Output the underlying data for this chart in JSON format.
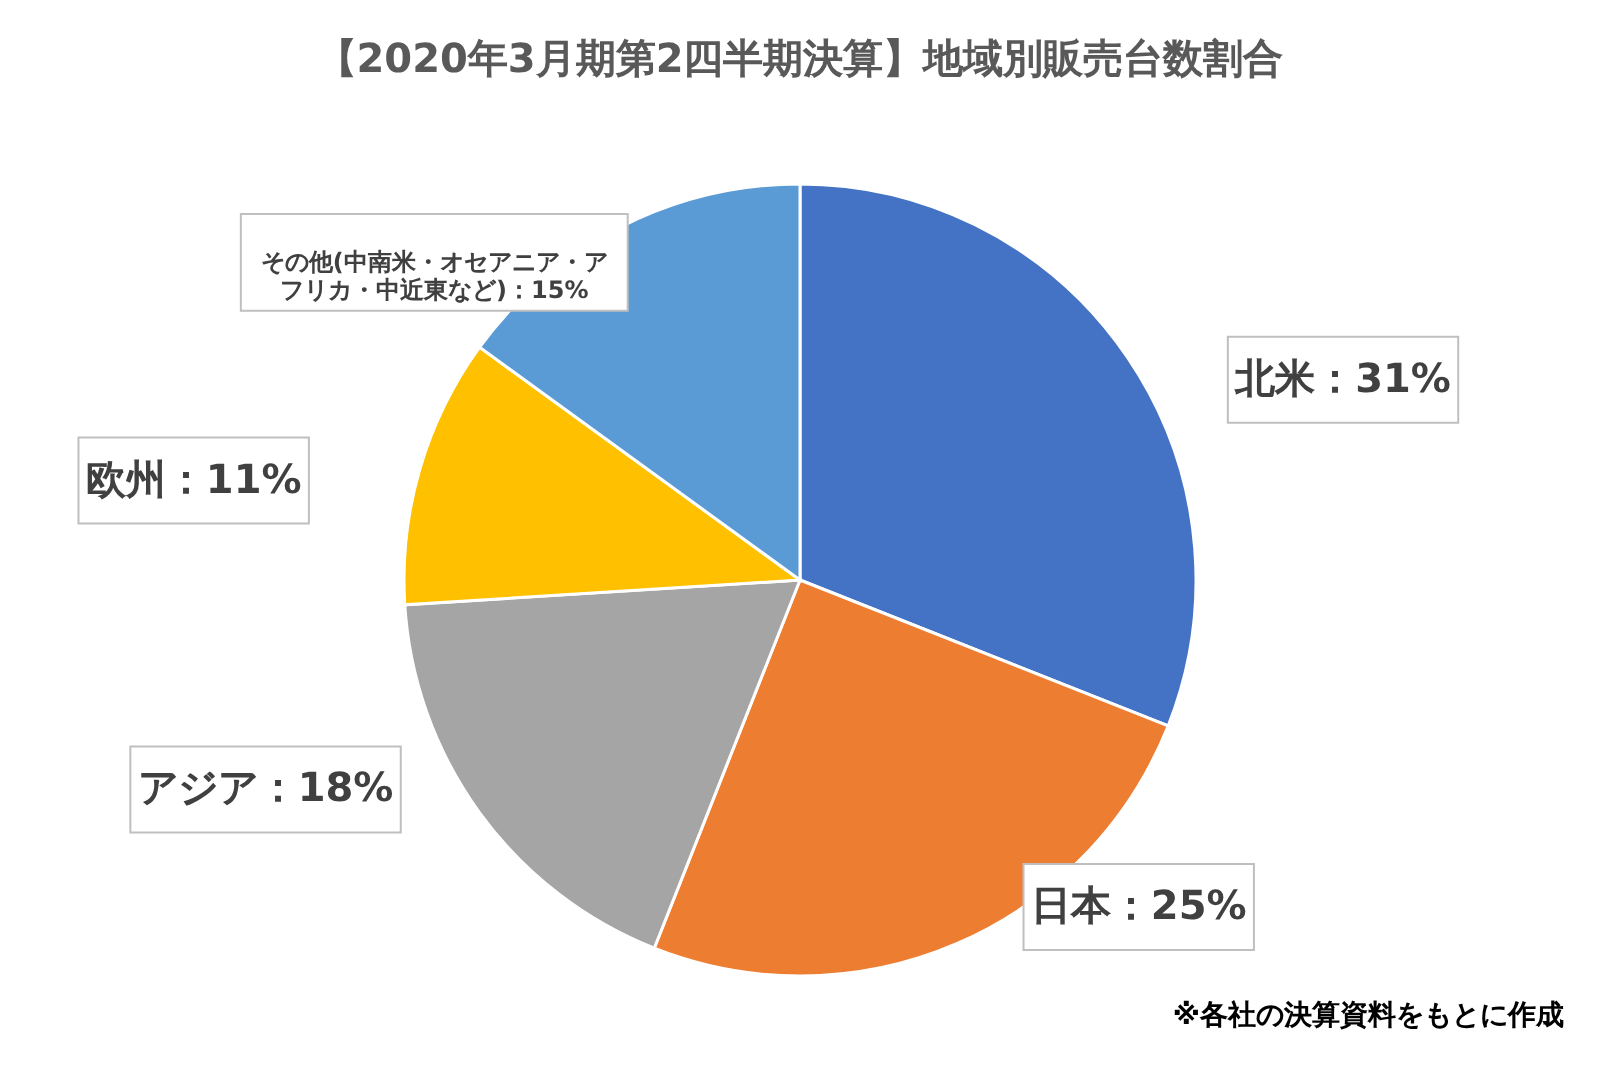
{
  "chart_data": {
    "type": "pie",
    "title": "【2020年3月期第2四半期決算】地域別販売台数割合",
    "categories": [
      "北米：31%",
      "日本：25%",
      "アジア：18%",
      "欧州：11%",
      "その他(中南米・オセアニア・アフリカ・中近東など)：15%"
    ],
    "values": [
      31,
      25,
      18,
      11,
      15
    ],
    "colors": [
      "#4472c4",
      "#ed7d31",
      "#a5a5a5",
      "#ffc000",
      "#5b9bd5"
    ],
    "annotations": [
      "※各社の決算資料をもとに作成"
    ]
  }
}
